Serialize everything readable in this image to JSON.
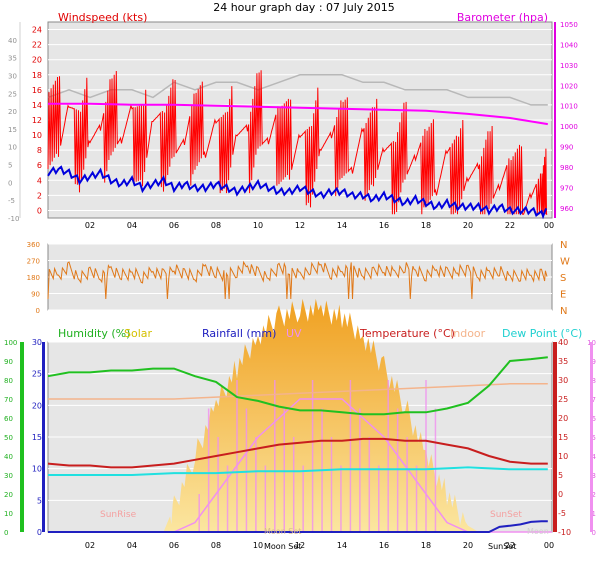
{
  "header": {
    "title": "24 hour graph day : 07 July 2015"
  },
  "colors": {
    "wind": "#ff0000",
    "gust_bg": "#c0c0c0",
    "baro": "#ff00ff",
    "windlow": "#0000dd",
    "dir": "#e07818",
    "humidity": "#20c020",
    "solar": "#f2b43a",
    "rain": "#2020c0",
    "uv": "#f090f0",
    "temp": "#c81e1e",
    "indoor": "#f4b48c",
    "dew": "#20e0e0",
    "panel": "#e6e6e6",
    "frame": "#3e3e3e"
  },
  "chart_data": [
    {
      "type": "line",
      "panel": "wind-baro",
      "ylabel": "Windspeed (kts)",
      "y2label": "Barometer (hpa)",
      "x_ticks": [
        "02",
        "04",
        "06",
        "08",
        "10",
        "12",
        "14",
        "16",
        "18",
        "20",
        "22",
        "00"
      ],
      "x_range": [
        0,
        24
      ],
      "ylim": [
        -1,
        25
      ],
      "ylim_outer": [
        -10,
        45
      ],
      "yticks": [
        0,
        2,
        4,
        6,
        8,
        10,
        12,
        14,
        16,
        18,
        20,
        22,
        24
      ],
      "yticks_outer": [
        -10,
        -5,
        0,
        5,
        10,
        15,
        20,
        25,
        30,
        35,
        40
      ],
      "y2lim": [
        955,
        1051
      ],
      "y2ticks": [
        960,
        970,
        980,
        990,
        1000,
        1010,
        1020,
        1030,
        1040,
        1050
      ],
      "grid": true,
      "series": [
        {
          "name": "Windspeed",
          "role": "gust",
          "x": [
            0,
            1,
            2,
            3,
            4,
            5,
            6,
            7,
            8,
            9,
            10,
            11,
            12,
            13,
            14,
            15,
            16,
            17,
            18,
            19,
            20,
            21,
            22,
            23,
            23.8
          ],
          "y": [
            15,
            16,
            15,
            16,
            16,
            15,
            17,
            16,
            17,
            17,
            16,
            17,
            18,
            18,
            18,
            17,
            17,
            16,
            16,
            16,
            15,
            15,
            15,
            14,
            14
          ]
        },
        {
          "name": "Barometer",
          "role": "baro",
          "x": [
            0,
            2,
            4,
            6,
            8,
            10,
            12,
            14,
            16,
            18,
            20,
            22,
            23.8
          ],
          "y": [
            1011,
            1011,
            1010.5,
            1010.5,
            1010,
            1009.5,
            1009,
            1008.5,
            1008,
            1007.5,
            1006,
            1004,
            1001
          ]
        },
        {
          "name": "Windspeed",
          "role": "average",
          "x": [
            0,
            0.5,
            1,
            1.5,
            2,
            2.5,
            3,
            3.5,
            4,
            4.5,
            5,
            5.5,
            6,
            6.5,
            7,
            7.5,
            8,
            8.5,
            9,
            9.5,
            10,
            10.5,
            11,
            11.5,
            12,
            12.5,
            13,
            13.5,
            14,
            14.5,
            15,
            15.5,
            16,
            16.5,
            17,
            17.5,
            18,
            18.5,
            19,
            19.5,
            20,
            20.5,
            21,
            21.5,
            22,
            22.5,
            23,
            23.5,
            23.8
          ],
          "y": [
            12,
            10,
            13,
            8,
            11,
            9,
            12,
            10,
            11,
            7,
            12,
            9,
            10,
            8,
            11,
            9,
            10,
            7,
            11,
            8,
            12,
            9,
            10,
            7,
            9,
            6,
            10,
            8,
            9,
            6,
            8,
            7,
            8,
            5,
            7,
            6,
            6,
            4,
            6,
            4,
            5,
            3,
            4,
            3,
            3,
            1,
            1,
            0,
            1
          ]
        },
        {
          "name": "Windspeed",
          "role": "low",
          "x": [
            0,
            0.5,
            1,
            1.5,
            2,
            2.5,
            3,
            3.5,
            4,
            4.5,
            5,
            5.5,
            6,
            6.5,
            7,
            7.5,
            8,
            8.5,
            9,
            9.5,
            10,
            10.5,
            11,
            11.5,
            12,
            12.5,
            13,
            13.5,
            14,
            14.5,
            15,
            15.5,
            16,
            16.5,
            17,
            17.5,
            18,
            18.5,
            19,
            19.5,
            20,
            20.5,
            21,
            21.5,
            22,
            22.5,
            23,
            23.5,
            23.8
          ],
          "y": [
            5,
            5.5,
            5,
            4,
            4.5,
            5,
            4,
            3.5,
            4,
            3,
            3.5,
            4,
            3,
            3.5,
            3,
            3,
            3.5,
            3,
            2.5,
            3,
            3.5,
            3,
            2.5,
            2.5,
            3,
            2.5,
            2,
            2.5,
            2.5,
            2,
            2,
            1.5,
            2,
            1.5,
            1,
            1.5,
            1,
            0.5,
            1,
            0.5,
            0.5,
            0.5,
            0,
            0.5,
            0,
            0,
            0,
            -0.5,
            0
          ]
        }
      ]
    },
    {
      "type": "line",
      "panel": "direction",
      "x_range": [
        0,
        24
      ],
      "ylim": [
        0,
        360
      ],
      "yticks": [
        0,
        90,
        180,
        270,
        360
      ],
      "ylabels_right": [
        "N",
        "W",
        "S",
        "E",
        "N"
      ],
      "ylabels_right_values": [
        360,
        270,
        180,
        90,
        0
      ],
      "grid": true,
      "series": [
        {
          "name": "Wind direction",
          "x": [
            0,
            0.5,
            1,
            1.5,
            2,
            2.5,
            3,
            3.5,
            4,
            4.5,
            5,
            5.5,
            6,
            6.5,
            7,
            7.5,
            8,
            8.5,
            9,
            9.5,
            10,
            10.5,
            11,
            11.5,
            12,
            12.5,
            13,
            13.5,
            14,
            14.5,
            15,
            15.5,
            16,
            16.5,
            17,
            17.5,
            18,
            18.5,
            19,
            19.5,
            20,
            20.5,
            21,
            21.5,
            22,
            22.5,
            23,
            23.5,
            23.8
          ],
          "y": [
            200,
            190,
            230,
            170,
            210,
            180,
            220,
            190,
            200,
            180,
            210,
            190,
            220,
            200,
            180,
            230,
            200,
            190,
            210,
            240,
            200,
            180,
            230,
            210,
            190,
            220,
            240,
            200,
            210,
            230,
            190,
            210,
            220,
            200,
            230,
            210,
            190,
            220,
            200,
            210,
            220,
            190,
            200,
            210,
            180,
            190,
            190,
            190,
            190
          ]
        }
      ]
    },
    {
      "type": "line",
      "panel": "multi",
      "x_range": [
        0,
        24
      ],
      "ylim_humidity": [
        0,
        100
      ],
      "yticks_humidity": [
        0,
        10,
        20,
        30,
        40,
        50,
        60,
        70,
        80,
        90,
        100
      ],
      "ylim_rain": [
        0,
        30
      ],
      "yticks_rain": [
        0,
        5,
        10,
        15,
        20,
        25,
        30
      ],
      "ylim_temp": [
        -10,
        40
      ],
      "yticks_temp": [
        -10,
        -5,
        0,
        5,
        10,
        15,
        20,
        25,
        30,
        35,
        40
      ],
      "ylim_uv": [
        0,
        10
      ],
      "yticks_uv": [
        0,
        1,
        2,
        3,
        4,
        5,
        6,
        7,
        8,
        9,
        10
      ],
      "x_ticks": [
        "02",
        "04",
        "06",
        "08",
        "10",
        "12",
        "14",
        "16",
        "18",
        "20",
        "22",
        "00"
      ],
      "series": [
        {
          "name": "Solar",
          "role": "solar",
          "x": [
            0,
            5.5,
            6,
            7,
            8,
            9,
            10,
            11,
            12,
            13,
            14,
            15,
            16,
            17,
            18,
            19,
            20,
            20.5,
            24
          ],
          "y": [
            0,
            0,
            4,
            12,
            20,
            26,
            31,
            34,
            35,
            35,
            34,
            31,
            26,
            20,
            12,
            6,
            1,
            0,
            0
          ]
        },
        {
          "name": "UV",
          "role": "uv",
          "x": [
            0,
            6,
            7,
            8,
            9,
            10,
            11,
            12,
            13,
            14,
            15,
            16,
            17,
            18,
            19,
            20,
            24
          ],
          "y": [
            0,
            0,
            0.5,
            2,
            3.5,
            5,
            6,
            7,
            7,
            7,
            6,
            5,
            3.5,
            2,
            0.5,
            0,
            0
          ]
        },
        {
          "name": "Humidity",
          "role": "humidity",
          "x": [
            0,
            1,
            2,
            3,
            4,
            5,
            6,
            7,
            8,
            9,
            10,
            11,
            12,
            13,
            14,
            15,
            16,
            17,
            18,
            19,
            20,
            21,
            22,
            23,
            23.8
          ],
          "y": [
            82,
            84,
            84,
            85,
            85,
            86,
            86,
            82,
            79,
            71,
            69,
            66,
            64,
            64,
            63,
            62,
            62,
            63,
            63,
            65,
            68,
            77,
            90,
            91,
            92
          ]
        },
        {
          "name": "Indoor",
          "role": "indoor",
          "x": [
            0,
            2,
            4,
            6,
            8,
            10,
            12,
            14,
            16,
            18,
            20,
            22,
            23.8
          ],
          "y": [
            70,
            70,
            70,
            70,
            71,
            72,
            73,
            74,
            75,
            76,
            77,
            78,
            78
          ]
        },
        {
          "name": "Temperature",
          "role": "temp",
          "x": [
            0,
            1,
            2,
            3,
            4,
            5,
            6,
            7,
            8,
            9,
            10,
            11,
            12,
            13,
            14,
            15,
            16,
            17,
            18,
            19,
            20,
            21,
            22,
            23,
            23.8
          ],
          "y": [
            8,
            7.5,
            7.5,
            7,
            7,
            7.5,
            8,
            9,
            10,
            11,
            12,
            13,
            13.5,
            14,
            14,
            14.5,
            14.5,
            14,
            14,
            13,
            12,
            10,
            8.5,
            8,
            8
          ]
        },
        {
          "name": "Dew Point",
          "role": "dew",
          "x": [
            0,
            2,
            4,
            6,
            8,
            10,
            12,
            14,
            16,
            18,
            20,
            22,
            23.8
          ],
          "y": [
            5,
            5,
            5,
            5.5,
            5.5,
            6,
            6,
            6.5,
            6.5,
            6.5,
            7,
            6.5,
            6.5
          ]
        },
        {
          "name": "Rainfall",
          "role": "rain",
          "x": [
            0,
            21,
            21.5,
            22,
            22.5,
            23,
            23.5,
            23.8
          ],
          "y": [
            0,
            0,
            0.8,
            1,
            1.2,
            1.6,
            1.7,
            1.7
          ]
        }
      ],
      "annotations": [
        "SunRise",
        "SunSet",
        "Moon Set",
        "Moon Set",
        "Moon"
      ]
    }
  ],
  "legend": {
    "humidity": "Humidity  (%)",
    "solar": "Solar",
    "rainfall": "Rainfall (mm)",
    "uv": "UV",
    "temperature": "Temperature (°C)",
    "indoor": "Indoor",
    "dew": "Dew Point (°C)"
  },
  "labels": {
    "sunrise": "SunRise",
    "sunset": "SunSet",
    "sunset_bottom": "SunSet",
    "moonset1": "Moon Set",
    "moonset2": "Moon Set",
    "moon": "Moon"
  }
}
